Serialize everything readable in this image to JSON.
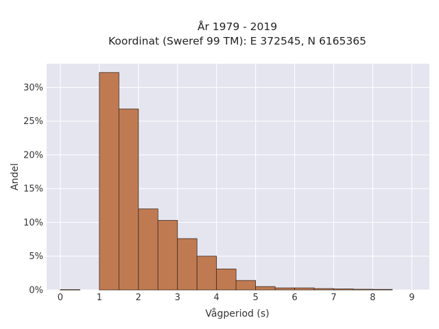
{
  "chart_data": {
    "type": "bar",
    "title": "År 1979 - 2019",
    "subtitle": "Koordinat (Sweref 99 TM): E 372545, N 6165365",
    "xlabel": "Vågperiod (s)",
    "ylabel": "Andel",
    "xlim": [
      -0.35,
      9.45
    ],
    "ylim": [
      0,
      0.335
    ],
    "x_ticks": [
      0,
      1,
      2,
      3,
      4,
      5,
      6,
      7,
      8,
      9
    ],
    "x_tick_labels": [
      "0",
      "1",
      "2",
      "3",
      "4",
      "5",
      "6",
      "7",
      "8",
      "9"
    ],
    "y_ticks": [
      0,
      0.05,
      0.1,
      0.15,
      0.2,
      0.25,
      0.3
    ],
    "y_tick_labels": [
      "0%",
      "5%",
      "10%",
      "15%",
      "20%",
      "25%",
      "30%"
    ],
    "bin_width": 0.5,
    "bins": [
      {
        "x0": 0.0,
        "value": 0.0005
      },
      {
        "x0": 0.5,
        "value": 0.0
      },
      {
        "x0": 1.0,
        "value": 0.322
      },
      {
        "x0": 1.5,
        "value": 0.268
      },
      {
        "x0": 2.0,
        "value": 0.12
      },
      {
        "x0": 2.5,
        "value": 0.103
      },
      {
        "x0": 3.0,
        "value": 0.076
      },
      {
        "x0": 3.5,
        "value": 0.05
      },
      {
        "x0": 4.0,
        "value": 0.031
      },
      {
        "x0": 4.5,
        "value": 0.014
      },
      {
        "x0": 5.0,
        "value": 0.005
      },
      {
        "x0": 5.5,
        "value": 0.003
      },
      {
        "x0": 6.0,
        "value": 0.003
      },
      {
        "x0": 6.5,
        "value": 0.002
      },
      {
        "x0": 7.0,
        "value": 0.0015
      },
      {
        "x0": 7.5,
        "value": 0.001
      },
      {
        "x0": 8.0,
        "value": 0.0008
      }
    ],
    "grid": true,
    "colors": {
      "bar_fill": "#c07a52",
      "bar_edge": "#3b2a1e",
      "plot_bg": "#e5e5f0",
      "grid": "#ffffff"
    }
  }
}
